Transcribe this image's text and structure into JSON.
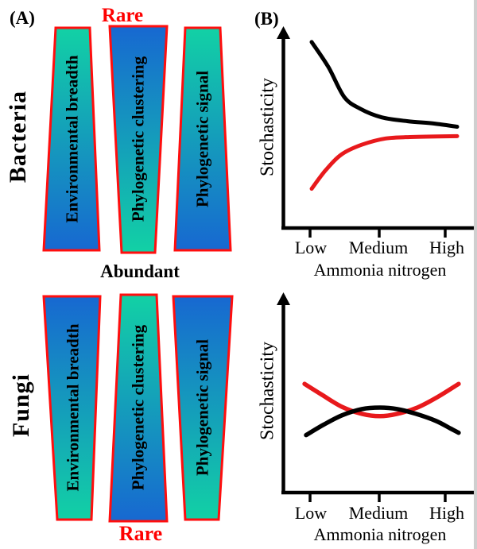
{
  "panel_labels": {
    "a": "(A)",
    "b": "(B)"
  },
  "panel_a": {
    "top_label": "Rare",
    "middle_label": "Abundant",
    "bottom_label": "Rare",
    "row_titles": [
      "Bacteria",
      "Fungi"
    ],
    "bar_labels": [
      "Environmental breadth",
      "Phylogenetic clustering",
      "Phylogenetic signal"
    ],
    "colors": {
      "teal": "#12d1a5",
      "blue": "#1768d1",
      "bar_border": "#ff0e0e",
      "label_red": "#fe0000"
    }
  },
  "chart_data": [
    {
      "type": "line",
      "panel": "B-top",
      "title": "",
      "xlabel": "Ammonia nitrogen",
      "ylabel": "Stochasticity",
      "x_tick_labels": [
        "Low",
        "Medium",
        "High"
      ],
      "y_axis": "qualitative arrow axis, no ticks",
      "legend": "none",
      "series": [
        {
          "name": "black curve",
          "color": "#000000",
          "description": "starts very high at Low ammonia nitrogen, decreases steeply and levels off just above the red curve at High",
          "points_norm": [
            [
              0.153,
              0.94
            ],
            [
              0.24,
              0.812
            ],
            [
              0.322,
              0.66
            ],
            [
              0.405,
              0.6
            ],
            [
              0.517,
              0.556
            ],
            [
              0.653,
              0.536
            ],
            [
              0.793,
              0.524
            ],
            [
              0.909,
              0.508
            ]
          ]
        },
        {
          "name": "red curve",
          "color": "#e8191c",
          "description": "starts low at Low ammonia nitrogen, increases and saturates just below the black curve at High",
          "points_norm": [
            [
              0.153,
              0.192
            ],
            [
              0.227,
              0.288
            ],
            [
              0.31,
              0.368
            ],
            [
              0.413,
              0.416
            ],
            [
              0.537,
              0.448
            ],
            [
              0.682,
              0.456
            ],
            [
              0.909,
              0.46
            ]
          ]
        }
      ]
    },
    {
      "type": "line",
      "panel": "B-bottom",
      "title": "",
      "xlabel": "Ammonia nitrogen",
      "ylabel": "Stochasticity",
      "x_tick_labels": [
        "Low",
        "Medium",
        "High"
      ],
      "y_axis": "qualitative arrow axis, no ticks",
      "legend": "none",
      "series": [
        {
          "name": "red curve",
          "color": "#e8191c",
          "description": "U-shaped: high at Low and High ammonia nitrogen with a minimum at Medium",
          "points_norm": [
            [
              0.116,
              0.548
            ],
            [
              0.207,
              0.492
            ],
            [
              0.31,
              0.431
            ],
            [
              0.413,
              0.395
            ],
            [
              0.508,
              0.383
            ],
            [
              0.599,
              0.395
            ],
            [
              0.702,
              0.427
            ],
            [
              0.806,
              0.48
            ],
            [
              0.917,
              0.548
            ]
          ]
        },
        {
          "name": "black curve",
          "color": "#000000",
          "description": "hump-shaped: low at Low and High ammonia nitrogen with a maximum at Medium, crossing the red curve twice",
          "points_norm": [
            [
              0.124,
              0.286
            ],
            [
              0.215,
              0.339
            ],
            [
              0.31,
              0.387
            ],
            [
              0.413,
              0.419
            ],
            [
              0.508,
              0.427
            ],
            [
              0.599,
              0.419
            ],
            [
              0.694,
              0.395
            ],
            [
              0.798,
              0.359
            ],
            [
              0.876,
              0.319
            ],
            [
              0.917,
              0.298
            ]
          ]
        }
      ]
    }
  ]
}
